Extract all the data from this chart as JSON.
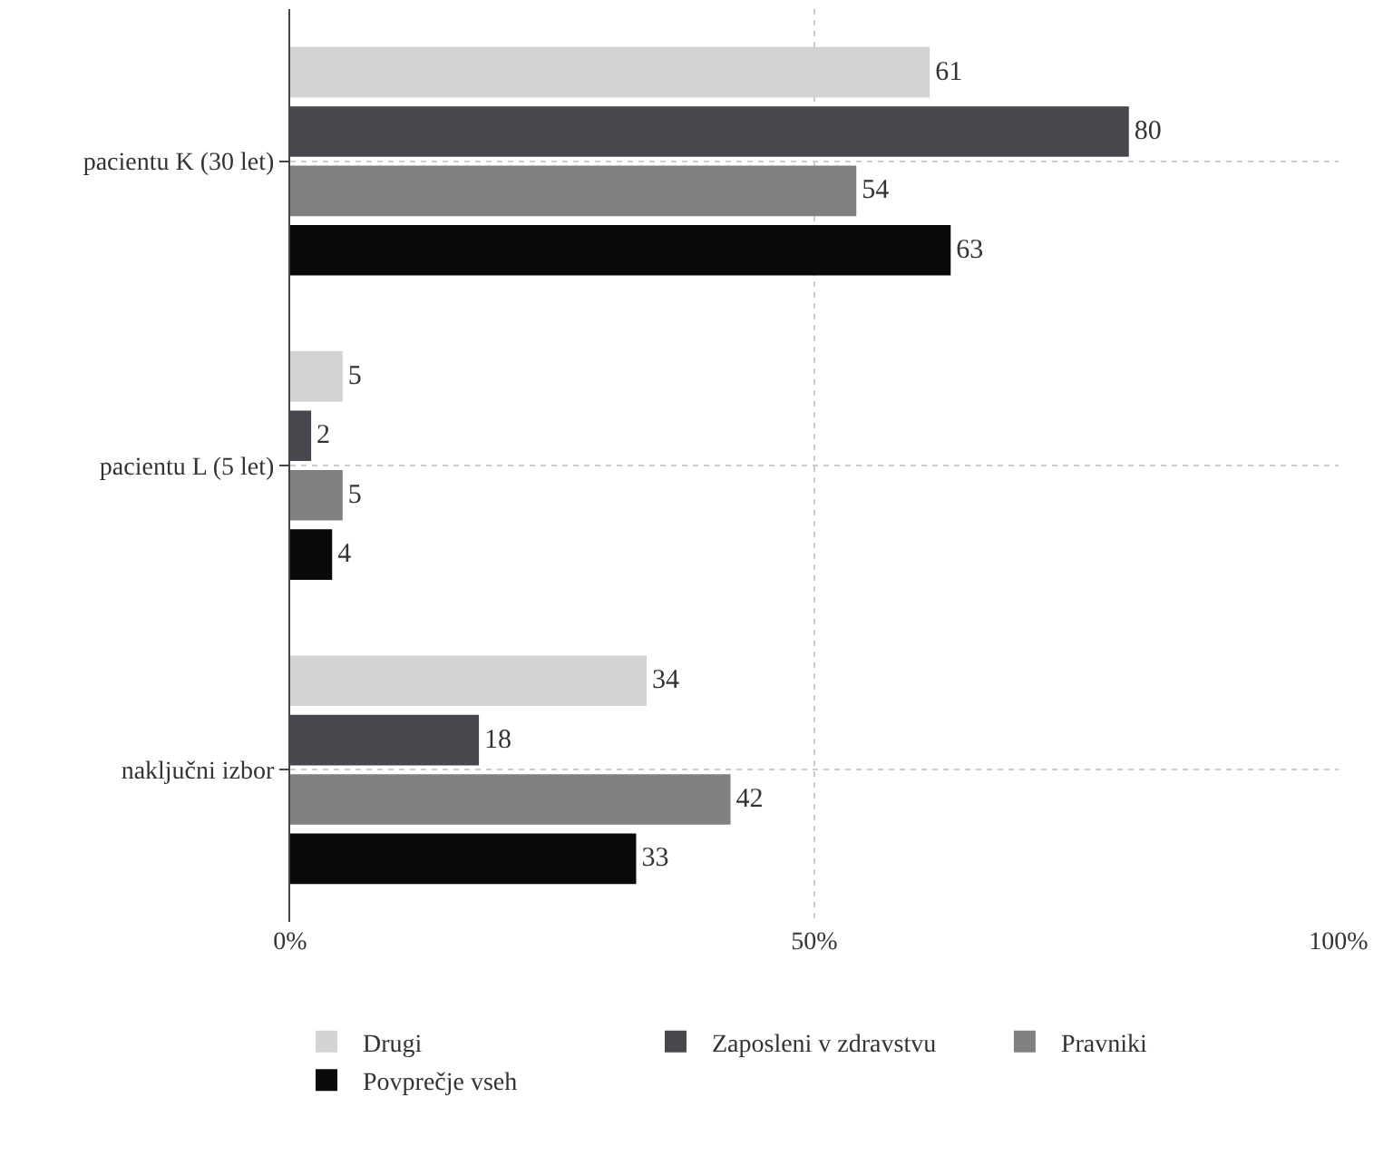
{
  "chart_data": {
    "type": "bar",
    "orientation": "horizontal",
    "categories": [
      "pacientu K (30 let)",
      "pacientu L (5 let)",
      "naključni izbor"
    ],
    "series": [
      {
        "name": "Drugi",
        "color": "#d3d3d3",
        "values": [
          61,
          5,
          34
        ]
      },
      {
        "name": "Zaposleni v zdravstvu",
        "color": "#47474d",
        "values": [
          80,
          2,
          18
        ]
      },
      {
        "name": "Pravniki",
        "color": "#808080",
        "values": [
          54,
          5,
          42
        ]
      },
      {
        "name": "Povprečje vseh",
        "color": "#0a0a0a",
        "values": [
          63,
          4,
          33
        ]
      }
    ],
    "xlim": [
      0,
      100
    ],
    "xticks": [
      {
        "value": 0,
        "label": "0%"
      },
      {
        "value": 50,
        "label": "50%"
      },
      {
        "value": 100,
        "label": "100%"
      }
    ],
    "grid": true,
    "legend": "bottom",
    "data_labels": true
  }
}
